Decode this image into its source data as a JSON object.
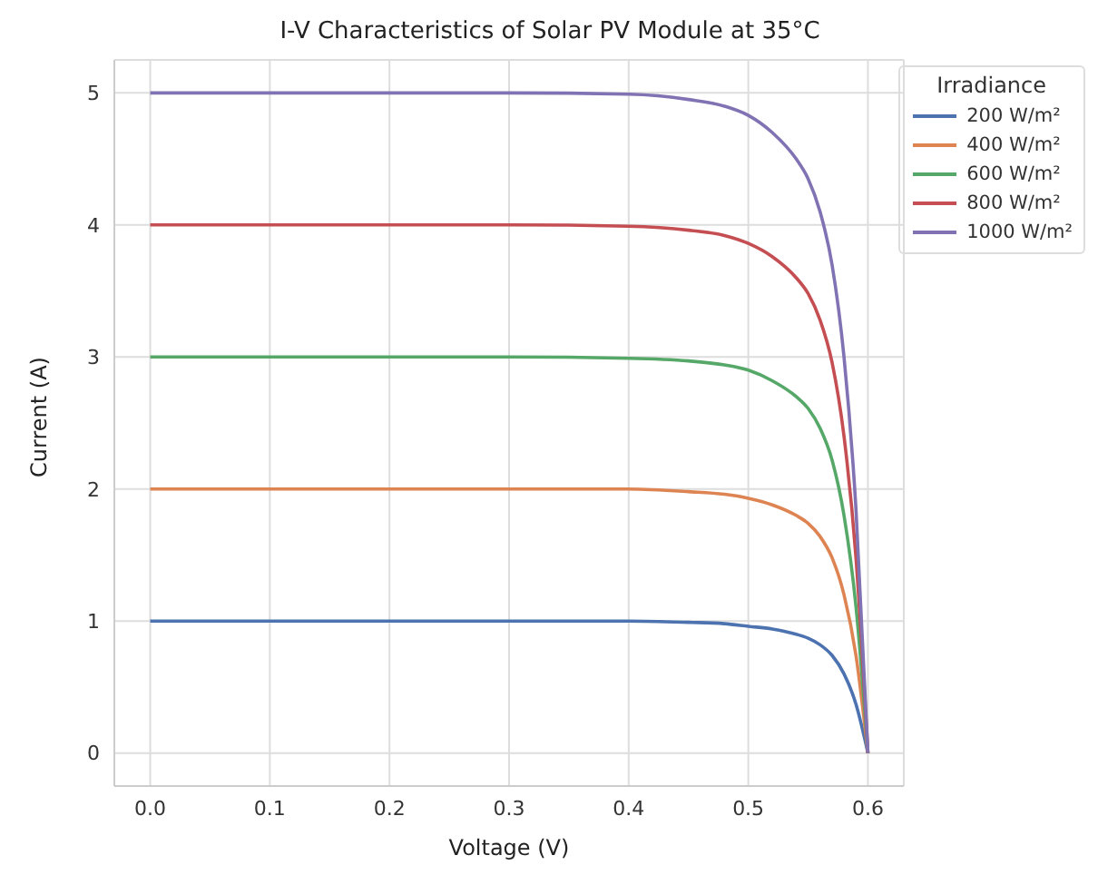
{
  "chart_data": {
    "type": "line",
    "title": "I-V Characteristics of Solar PV Module at 35°C",
    "xlabel": "Voltage (V)",
    "ylabel": "Current (A)",
    "legend_title": "Irradiance",
    "legend": "top right",
    "grid": true,
    "marker": "none",
    "line_style": "solid",
    "x": [
      0,
      0.1,
      0.2,
      0.3,
      0.4,
      0.45,
      0.48,
      0.5,
      0.52,
      0.54,
      0.55,
      0.56,
      0.57,
      0.58,
      0.59,
      0.6
    ],
    "xlim": [
      -0.03,
      0.63
    ],
    "xticks": [
      {
        "value": 0,
        "label": "0.0"
      },
      0.1,
      0.2,
      0.3,
      0.4,
      0.5,
      0.6
    ],
    "ylim": [
      -0.25,
      5.25
    ],
    "yticks": [
      0,
      1,
      2,
      3,
      4,
      5
    ],
    "series": [
      {
        "name": "200 W/m²",
        "color": "#4c72b0",
        "values": [
          1,
          1,
          1,
          1,
          1,
          0.99,
          0.98,
          0.96,
          0.94,
          0.9,
          0.87,
          0.82,
          0.74,
          0.6,
          0.37,
          0
        ]
      },
      {
        "name": "400 W/m²",
        "color": "#dd8452",
        "values": [
          2,
          2,
          2,
          2,
          2,
          1.98,
          1.96,
          1.93,
          1.88,
          1.8,
          1.74,
          1.64,
          1.48,
          1.2,
          0.74,
          0
        ]
      },
      {
        "name": "600 W/m²",
        "color": "#55a868",
        "values": [
          3,
          3,
          3,
          3,
          2.99,
          2.97,
          2.94,
          2.9,
          2.82,
          2.7,
          2.61,
          2.46,
          2.22,
          1.8,
          1.11,
          0
        ]
      },
      {
        "name": "800 W/m²",
        "color": "#c44e52",
        "values": [
          4,
          4,
          4,
          4,
          3.99,
          3.96,
          3.92,
          3.86,
          3.76,
          3.6,
          3.48,
          3.28,
          2.96,
          2.4,
          1.48,
          0
        ]
      },
      {
        "name": "1000 W/m²",
        "color": "#8172b3",
        "values": [
          5,
          5,
          5,
          5,
          4.99,
          4.95,
          4.9,
          4.83,
          4.7,
          4.5,
          4.35,
          4.1,
          3.7,
          3,
          1.85,
          0
        ]
      }
    ]
  }
}
